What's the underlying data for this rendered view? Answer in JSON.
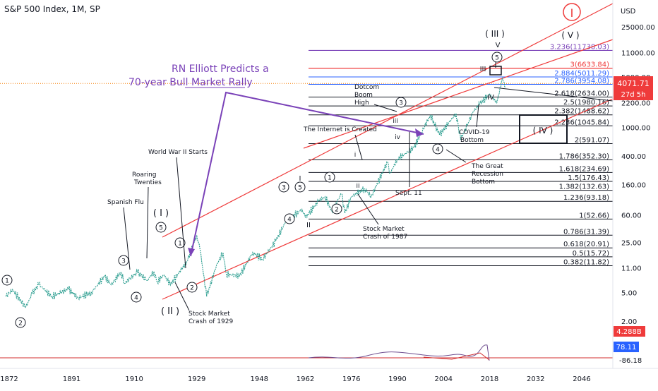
{
  "header": {
    "title": "S&P 500 Index, 1M, SP"
  },
  "axis": {
    "currency": "USD",
    "price_ticks": [
      "25000.00",
      "11000.00",
      "5000.00",
      "2200.00",
      "1000.00",
      "400.00",
      "160.00",
      "60.00",
      "25.00",
      "11.00",
      "5.00",
      "2.00"
    ],
    "year_ticks": [
      "1872",
      "1891",
      "1910",
      "1929",
      "1948",
      "1962",
      "1976",
      "1990",
      "2004",
      "2018",
      "2032",
      "2046"
    ],
    "price_badge": "4071.71",
    "price_badge_sub": "27d 5h",
    "volume_badge": "4.288B",
    "osc_badge_high": "78.11",
    "osc_badge_low": "-86.18",
    "scale": "log",
    "ylim": [
      1.5,
      40000
    ]
  },
  "colors": {
    "series": "#2a9d8f",
    "channel": "#ef3b3b",
    "fib": "#131722",
    "purple": "#7a42b8",
    "blue": "#2962ff",
    "badge": "#ef3b3b",
    "osc": "#d32f2f",
    "oscBlue": "#2962ff"
  },
  "annotations": {
    "headline_1": "RN Elliott Predicts a",
    "headline_2": "70-year Bull Market Rally",
    "spanish_flu": "Spanish Flu",
    "roaring_1": "Roaring",
    "roaring_2": "Twenties",
    "ww2": "World War II Starts",
    "crash29_1": "Stock Market",
    "crash29_2": "Crash of 1929",
    "crash87_1": "Stock Market",
    "crash87_2": "Crash of 1987",
    "internet": "The Internet is Created",
    "dotcom_1": "Dotcom",
    "dotcom_2": "Boom",
    "dotcom_3": "High",
    "sept11": "Sept. 11",
    "covid_1": "COVID-19",
    "covid_2": "Bottom",
    "recession_1": "The Great",
    "recession_2": "Recession",
    "recession_3": "Bottom"
  },
  "waves": {
    "super_I": "I",
    "grand_III": "( III )",
    "grand_V": "( V )",
    "grand_IV": "( IV )",
    "grand_I": "( I )",
    "grand_II": "( II )",
    "v_small": "V",
    "III_small": "III",
    "IV_small": "IV",
    "I_small": "I",
    "II_small": "II",
    "iii": "iii",
    "iv": "iv",
    "i": "i",
    "ii": "ii",
    "c1a": "1",
    "c2a": "2",
    "c3a": "3",
    "c4a": "4",
    "c5a": "5",
    "c1b": "1",
    "c2b": "2",
    "c3c": "3",
    "c4c": "4",
    "c5c": "5",
    "c1d": "1",
    "c2d": "2",
    "c3e": "3",
    "c4e": "4",
    "c5e": "5"
  },
  "fib_levels": [
    {
      "label": "3.236(11738.03)",
      "color": "#7a42b8"
    },
    {
      "label": "3(6633.84)",
      "color": "#ef3b3b"
    },
    {
      "label": "2.884(5011.29)",
      "color": "#2962ff"
    },
    {
      "label": "2.786(3954.08)",
      "color": "#2962ff"
    },
    {
      "label": "2.618(2634.00)",
      "color": "#131722"
    },
    {
      "label": "2.5(1980.16)",
      "color": "#131722"
    },
    {
      "label": "2.382(1488.62)",
      "color": "#131722"
    },
    {
      "label": "2.236(1045.84)",
      "color": "#131722"
    },
    {
      "label": "2(591.07)",
      "color": "#131722"
    },
    {
      "label": "1.786(352.30)",
      "color": "#131722"
    },
    {
      "label": "1.618(234.69)",
      "color": "#131722"
    },
    {
      "label": "1.5(176.43)",
      "color": "#131722"
    },
    {
      "label": "1.382(132.63)",
      "color": "#131722"
    },
    {
      "label": "1.236(93.18)",
      "color": "#131722"
    },
    {
      "label": "1(52.66)",
      "color": "#131722"
    },
    {
      "label": "0.786(31.39)",
      "color": "#131722"
    },
    {
      "label": "0.618(20.91)",
      "color": "#131722"
    },
    {
      "label": "0.5(15.72)",
      "color": "#131722"
    },
    {
      "label": "0.382(11.82)",
      "color": "#131722"
    }
  ],
  "chart_data": {
    "type": "line",
    "title": "S&P 500 Index, 1M, SP",
    "xlabel": "",
    "ylabel": "",
    "yscale": "log",
    "x_range": [
      1872,
      2046
    ],
    "ylim": [
      1.5,
      40000
    ],
    "series": [
      {
        "x": [
          1871,
          1873,
          1877,
          1879,
          1881,
          1885,
          1890,
          1893,
          1897,
          1901,
          1903,
          1906,
          1907,
          1911,
          1914,
          1916,
          1917,
          1919,
          1921,
          1926,
          1929,
          1930,
          1932,
          1935,
          1937,
          1938,
          1942,
          1946,
          1949,
          1953,
          1956,
          1961,
          1962,
          1966,
          1968,
          1970,
          1973,
          1974,
          1976,
          1980,
          1982,
          1987,
          1987.8,
          1990,
          1995,
          2000,
          2002.8,
          2007.8,
          2009.2,
          2013,
          2015,
          2018,
          2020.2,
          2021.9,
          2022.8
        ],
        "values": [
          4.4,
          5.5,
          3.1,
          4.8,
          6.5,
          4.4,
          5.6,
          4.2,
          5.0,
          8.4,
          6.4,
          9.7,
          6.7,
          9.6,
          7.4,
          9.8,
          7.0,
          8.8,
          6.4,
          13.5,
          31.5,
          20,
          4.4,
          12,
          18,
          9,
          8.5,
          18,
          14.5,
          26,
          48,
          72,
          55,
          94,
          108,
          69,
          119,
          64,
          108,
          140,
          108,
          330,
          230,
          360,
          520,
          1480,
          780,
          1560,
          670,
          1640,
          2100,
          2900,
          2200,
          4790,
          3600
        ]
      }
    ],
    "fib_values": [
      11738.03,
      6633.84,
      5011.29,
      3954.08,
      2634.0,
      1980.16,
      1488.62,
      1045.84,
      591.07,
      352.3,
      234.69,
      176.43,
      132.63,
      93.18,
      52.66,
      31.39,
      20.91,
      15.72,
      11.82
    ]
  }
}
